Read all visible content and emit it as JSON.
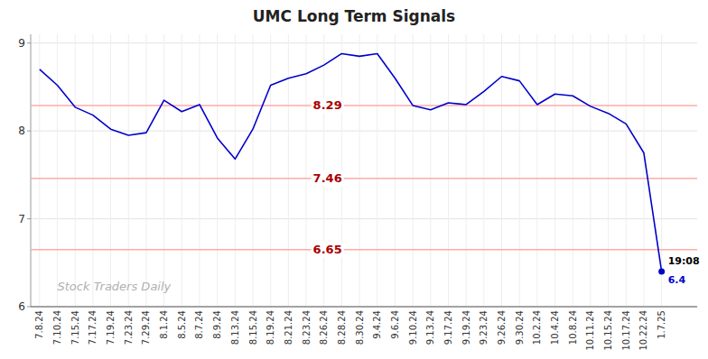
{
  "chart_data": {
    "type": "line",
    "title": "UMC Long Term Signals",
    "categories": [
      "7.8.24",
      "7.10.24",
      "7.15.24",
      "7.17.24",
      "7.19.24",
      "7.23.24",
      "7.29.24",
      "8.1.24",
      "8.5.24",
      "8.7.24",
      "8.9.24",
      "8.13.24",
      "8.15.24",
      "8.19.24",
      "8.21.24",
      "8.23.24",
      "8.26.24",
      "8.28.24",
      "8.30.24",
      "9.4.24",
      "9.6.24",
      "9.10.24",
      "9.13.24",
      "9.17.24",
      "9.19.24",
      "9.23.24",
      "9.26.24",
      "9.30.24",
      "10.2.24",
      "10.4.24",
      "10.8.24",
      "10.11.24",
      "10.15.24",
      "10.17.24",
      "10.22.24",
      "1.7.25"
    ],
    "values": [
      8.7,
      8.52,
      8.27,
      8.18,
      8.02,
      7.95,
      7.98,
      8.35,
      8.22,
      8.3,
      7.92,
      7.68,
      8.02,
      8.52,
      8.6,
      8.65,
      8.75,
      8.88,
      8.85,
      8.88,
      8.6,
      8.29,
      8.24,
      8.32,
      8.3,
      8.45,
      8.62,
      8.57,
      8.3,
      8.42,
      8.4,
      8.28,
      8.2,
      8.08,
      7.75,
      6.4
    ],
    "value_labels": [
      null,
      null,
      null,
      null,
      null,
      null,
      null,
      null,
      null,
      null,
      null,
      null,
      null,
      null,
      null,
      null,
      null,
      null,
      null,
      null,
      null,
      null,
      null,
      null,
      null,
      null,
      null,
      null,
      null,
      null,
      null,
      null,
      null,
      null,
      null,
      "6.4"
    ],
    "color": "#0000cc",
    "hlines": [
      {
        "value": 8.29,
        "label": "8.29",
        "color": "#ffaaaa"
      },
      {
        "value": 7.46,
        "label": "7.46",
        "color": "#ffaaaa"
      },
      {
        "value": 6.65,
        "label": "6.65",
        "color": "#ffaaaa"
      }
    ],
    "annotations": [
      "Stock Traders Daily",
      "19:08"
    ],
    "ylim": [
      6.0,
      9.1
    ],
    "yticks": [
      6,
      7,
      8,
      9
    ],
    "grid": true
  }
}
